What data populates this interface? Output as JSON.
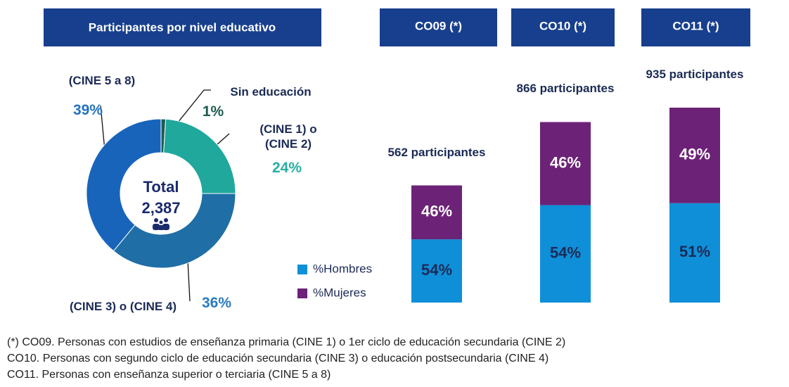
{
  "chart_data": [
    {
      "type": "pie",
      "title": "Participantes por nivel educativo",
      "center_label": "Total",
      "total": {
        "value": 2387,
        "label": "2,387"
      },
      "categories": [
        "Sin educación",
        "(CINE 1) o (CINE 2)",
        "(CINE 3) o (CINE 4)",
        "(CINE 5 a 8)"
      ],
      "values": [
        1,
        24,
        36,
        39
      ],
      "value_labels": [
        "1%",
        "24%",
        "36%",
        "39%"
      ],
      "colors": [
        "#1c5b4f",
        "#1fa89b",
        "#1f6ea6",
        "#1864bb"
      ]
    },
    {
      "type": "stacked_bar",
      "categories": [
        "CO09 (*)",
        "CO10 (*)",
        "CO11 (*)"
      ],
      "totals": [
        {
          "value": 562,
          "label": "562 participantes"
        },
        {
          "value": 866,
          "label": "866 participantes"
        },
        {
          "value": 935,
          "label": "935 participantes"
        }
      ],
      "series": [
        {
          "name": "%Hombres",
          "color": "#0f8fd8",
          "values": [
            54,
            54,
            51
          ],
          "value_labels": [
            "54%",
            "54%",
            "51%"
          ]
        },
        {
          "name": "%Mujeres",
          "color": "#6c2277",
          "values": [
            46,
            46,
            49
          ],
          "value_labels": [
            "46%",
            "46%",
            "49%"
          ]
        }
      ]
    }
  ],
  "notes": [
    "(*) CO09. Personas con estudios de enseñanza primaria (CINE 1) o 1er ciclo de educación secundaria (CINE 2)",
    "CO10. Personas con segundo ciclo de educación secundaria (CINE 3) o educación postsecundaria (CINE 4)",
    "CO11. Personas con enseñanza superior o terciaria (CINE 5 a 8)"
  ]
}
